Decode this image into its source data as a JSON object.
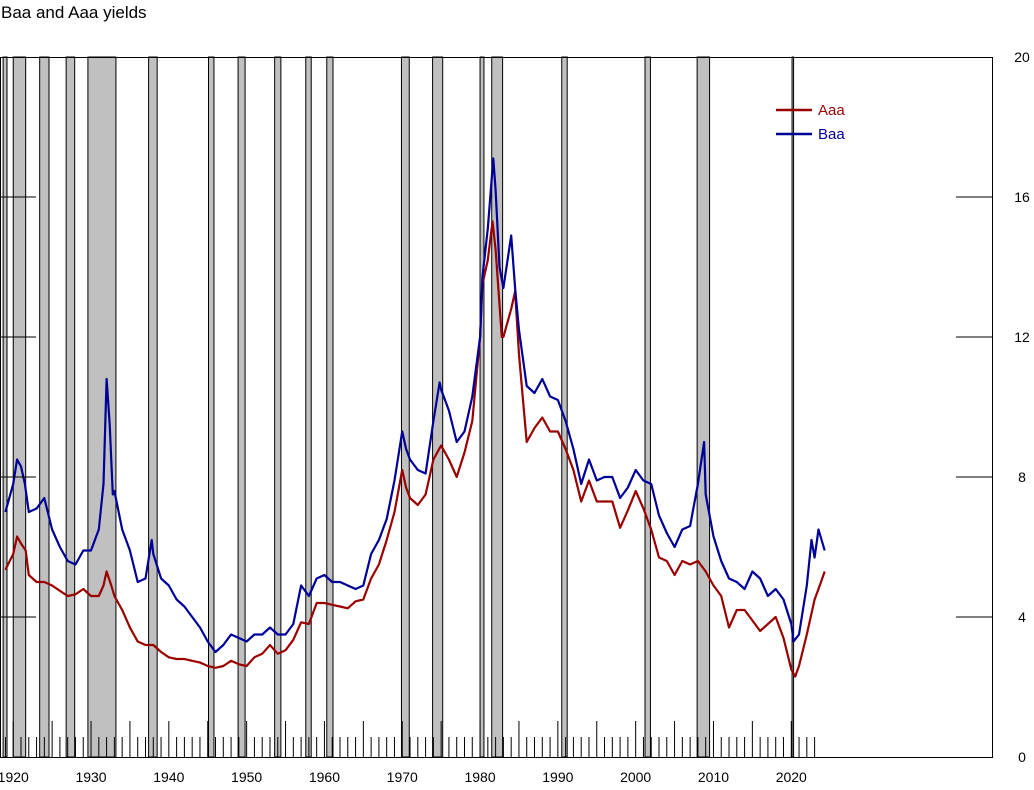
{
  "chart_data": {
    "type": "line",
    "title": "Baa and Aaa yields",
    "xlabel": "",
    "ylabel": "",
    "xlim": [
      1918.3,
      2045.8
    ],
    "ylim": [
      0,
      20
    ],
    "grid": false,
    "legend_position": "top-right",
    "x_ticks": [
      1920,
      1930,
      1940,
      1950,
      1960,
      1970,
      1980,
      1990,
      2000,
      2010,
      2020
    ],
    "x_tick_labels": [
      "1920",
      "1930",
      "1940",
      "1950",
      "1960",
      "1970",
      "1980",
      "1990",
      "2000",
      "2010",
      "2020"
    ],
    "y_ticks": [
      0,
      4,
      8,
      12,
      16,
      20
    ],
    "y_tick_labels": [
      "0",
      "4",
      "8",
      "12",
      "16",
      "20"
    ],
    "recessions": [
      [
        1918.7,
        1919.2
      ],
      [
        1920.0,
        1921.6
      ],
      [
        1923.4,
        1924.6
      ],
      [
        1926.8,
        1927.9
      ],
      [
        1929.6,
        1933.2
      ],
      [
        1937.4,
        1938.5
      ],
      [
        1945.1,
        1945.8
      ],
      [
        1948.9,
        1949.8
      ],
      [
        1953.6,
        1954.4
      ],
      [
        1957.6,
        1958.3
      ],
      [
        1960.3,
        1961.1
      ],
      [
        1969.9,
        1970.9
      ],
      [
        1973.9,
        1975.2
      ],
      [
        1980.0,
        1980.5
      ],
      [
        1981.5,
        1982.9
      ],
      [
        1990.5,
        1991.2
      ],
      [
        2001.2,
        2001.9
      ],
      [
        2007.9,
        2009.5
      ],
      [
        2020.1,
        2020.3
      ]
    ],
    "series": [
      {
        "name": "Aaa",
        "color": "#9b0000",
        "x": [
          1919,
          1920,
          1920.5,
          1921,
          1921.6,
          1922,
          1923,
          1924,
          1925,
          1926,
          1927,
          1928,
          1929,
          1930,
          1931,
          1931.6,
          1932,
          1932.6,
          1933,
          1934,
          1935,
          1936,
          1937,
          1938,
          1939,
          1940,
          1941,
          1942,
          1943,
          1944,
          1945,
          1946,
          1947,
          1948,
          1949,
          1950,
          1951,
          1952,
          1953,
          1954,
          1955,
          1956,
          1957,
          1958,
          1959,
          1960,
          1961,
          1962,
          1963,
          1964,
          1965,
          1966,
          1967,
          1968,
          1969,
          1970,
          1970.5,
          1971,
          1972,
          1973,
          1974,
          1975,
          1976,
          1977,
          1978,
          1979,
          1980,
          1980.3,
          1981,
          1981.6,
          1982,
          1982.8,
          1983,
          1984,
          1984.5,
          1985,
          1986,
          1987,
          1988,
          1989,
          1990,
          1991,
          1992,
          1993,
          1994,
          1995,
          1996,
          1997,
          1998,
          1999,
          2000,
          2001,
          2002,
          2003,
          2004,
          2005,
          2006,
          2007,
          2008,
          2009,
          2010,
          2011,
          2012,
          2013,
          2014,
          2015,
          2016,
          2017,
          2018,
          2019,
          2020,
          2020.5,
          2021,
          2022,
          2023,
          2023.5,
          2024.3
        ],
        "y": [
          5.35,
          5.8,
          6.3,
          6.1,
          5.9,
          5.2,
          5.0,
          5.0,
          4.9,
          4.75,
          4.6,
          4.65,
          4.8,
          4.6,
          4.6,
          4.9,
          5.3,
          4.9,
          4.6,
          4.2,
          3.7,
          3.3,
          3.2,
          3.2,
          3.0,
          2.85,
          2.8,
          2.8,
          2.75,
          2.7,
          2.6,
          2.55,
          2.6,
          2.75,
          2.65,
          2.6,
          2.85,
          2.95,
          3.2,
          2.95,
          3.05,
          3.35,
          3.85,
          3.8,
          4.4,
          4.4,
          4.35,
          4.3,
          4.25,
          4.45,
          4.5,
          5.1,
          5.5,
          6.2,
          7.0,
          8.2,
          7.7,
          7.4,
          7.2,
          7.5,
          8.5,
          8.9,
          8.5,
          8.0,
          8.7,
          9.6,
          12.0,
          13.5,
          14.2,
          15.3,
          14.5,
          12.0,
          12.0,
          12.8,
          13.3,
          11.5,
          9.0,
          9.4,
          9.7,
          9.3,
          9.3,
          8.8,
          8.2,
          7.3,
          7.9,
          7.3,
          7.3,
          7.3,
          6.55,
          7.05,
          7.6,
          7.1,
          6.5,
          5.7,
          5.6,
          5.2,
          5.6,
          5.5,
          5.6,
          5.3,
          4.9,
          4.6,
          3.7,
          4.2,
          4.2,
          3.9,
          3.6,
          3.8,
          4.0,
          3.4,
          2.5,
          2.3,
          2.6,
          3.5,
          4.5,
          4.8,
          5.3
        ]
      },
      {
        "name": "Baa",
        "color": "#000099",
        "x": [
          1919,
          1920,
          1920.5,
          1921,
          1921.5,
          1922,
          1923,
          1924,
          1925,
          1926,
          1927,
          1928,
          1929,
          1930,
          1931,
          1931.6,
          1932,
          1932.4,
          1932.8,
          1933,
          1934,
          1935,
          1936,
          1937,
          1937.8,
          1938,
          1939,
          1940,
          1941,
          1942,
          1943,
          1944,
          1945,
          1946,
          1947,
          1948,
          1949,
          1950,
          1951,
          1952,
          1953,
          1954,
          1955,
          1956,
          1957,
          1958,
          1959,
          1960,
          1961,
          1962,
          1963,
          1964,
          1965,
          1966,
          1967,
          1968,
          1969,
          1970,
          1970.5,
          1971,
          1972,
          1973,
          1974,
          1974.8,
          1975,
          1976,
          1977,
          1978,
          1979,
          1980,
          1980.3,
          1981,
          1981.7,
          1982,
          1982.5,
          1983,
          1984,
          1984.5,
          1985,
          1986,
          1987,
          1988,
          1989,
          1990,
          1991,
          1992,
          1993,
          1994,
          1995,
          1996,
          1997,
          1998,
          1999,
          2000,
          2001,
          2002,
          2003,
          2004,
          2005,
          2006,
          2007,
          2008,
          2008.8,
          2009,
          2010,
          2011,
          2012,
          2013,
          2014,
          2015,
          2016,
          2017,
          2018,
          2019,
          2020,
          2020.3,
          2021,
          2022,
          2022.6,
          2023,
          2023.5,
          2024.3
        ],
        "y": [
          7.0,
          7.8,
          8.5,
          8.3,
          7.8,
          7.0,
          7.1,
          7.4,
          6.5,
          6.0,
          5.6,
          5.5,
          5.9,
          5.9,
          6.5,
          7.8,
          10.8,
          9.5,
          7.5,
          7.6,
          6.5,
          5.9,
          5.0,
          5.1,
          6.2,
          5.8,
          5.1,
          4.9,
          4.5,
          4.3,
          4.0,
          3.7,
          3.3,
          3.0,
          3.2,
          3.5,
          3.4,
          3.3,
          3.5,
          3.5,
          3.7,
          3.5,
          3.5,
          3.8,
          4.9,
          4.6,
          5.1,
          5.2,
          5.0,
          5.0,
          4.9,
          4.8,
          4.9,
          5.8,
          6.2,
          6.8,
          7.9,
          9.3,
          8.8,
          8.5,
          8.2,
          8.1,
          9.6,
          10.7,
          10.5,
          9.9,
          9.0,
          9.3,
          10.3,
          12.0,
          13.7,
          15.1,
          17.1,
          16.2,
          14.0,
          13.4,
          14.9,
          13.4,
          12.2,
          10.6,
          10.4,
          10.8,
          10.3,
          10.2,
          9.6,
          8.8,
          7.8,
          8.5,
          7.9,
          8.0,
          8.0,
          7.4,
          7.7,
          8.2,
          7.9,
          7.8,
          6.9,
          6.4,
          6.0,
          6.5,
          6.6,
          7.8,
          9.0,
          7.5,
          6.3,
          5.6,
          5.1,
          5.0,
          4.8,
          5.3,
          5.1,
          4.6,
          4.8,
          4.5,
          3.8,
          3.3,
          3.5,
          4.9,
          6.2,
          5.7,
          6.5,
          5.9
        ]
      }
    ],
    "rug_ticks": {
      "years": [
        1919,
        1920,
        1921,
        1922,
        1923,
        1924,
        1925,
        1926,
        1927,
        1928,
        1929,
        1930,
        1931,
        1932,
        1933,
        1934,
        1935,
        1936,
        1937,
        1938,
        1939,
        1940,
        1941,
        1942,
        1943,
        1944,
        1945,
        1946,
        1947,
        1948,
        1949,
        1950,
        1951,
        1952,
        1953,
        1954,
        1955,
        1956,
        1957,
        1958,
        1959,
        1960,
        1961,
        1962,
        1963,
        1964,
        1965,
        1966,
        1967,
        1968,
        1969,
        1970,
        1971,
        1972,
        1973,
        1974,
        1975,
        1976,
        1977,
        1978,
        1979,
        1980,
        1981,
        1982,
        1983,
        1984,
        1985,
        1986,
        1987,
        1988,
        1989,
        1990,
        1991,
        1992,
        1993,
        1994,
        1995,
        1996,
        1997,
        1998,
        1999,
        2000,
        2001,
        2002,
        2003,
        2004,
        2005,
        2006,
        2007,
        2008,
        2009,
        2010,
        2011,
        2012,
        2013,
        2014,
        2015,
        2016,
        2017,
        2018,
        2019,
        2020,
        2021,
        2022,
        2023
      ],
      "long_every": 5
    }
  }
}
